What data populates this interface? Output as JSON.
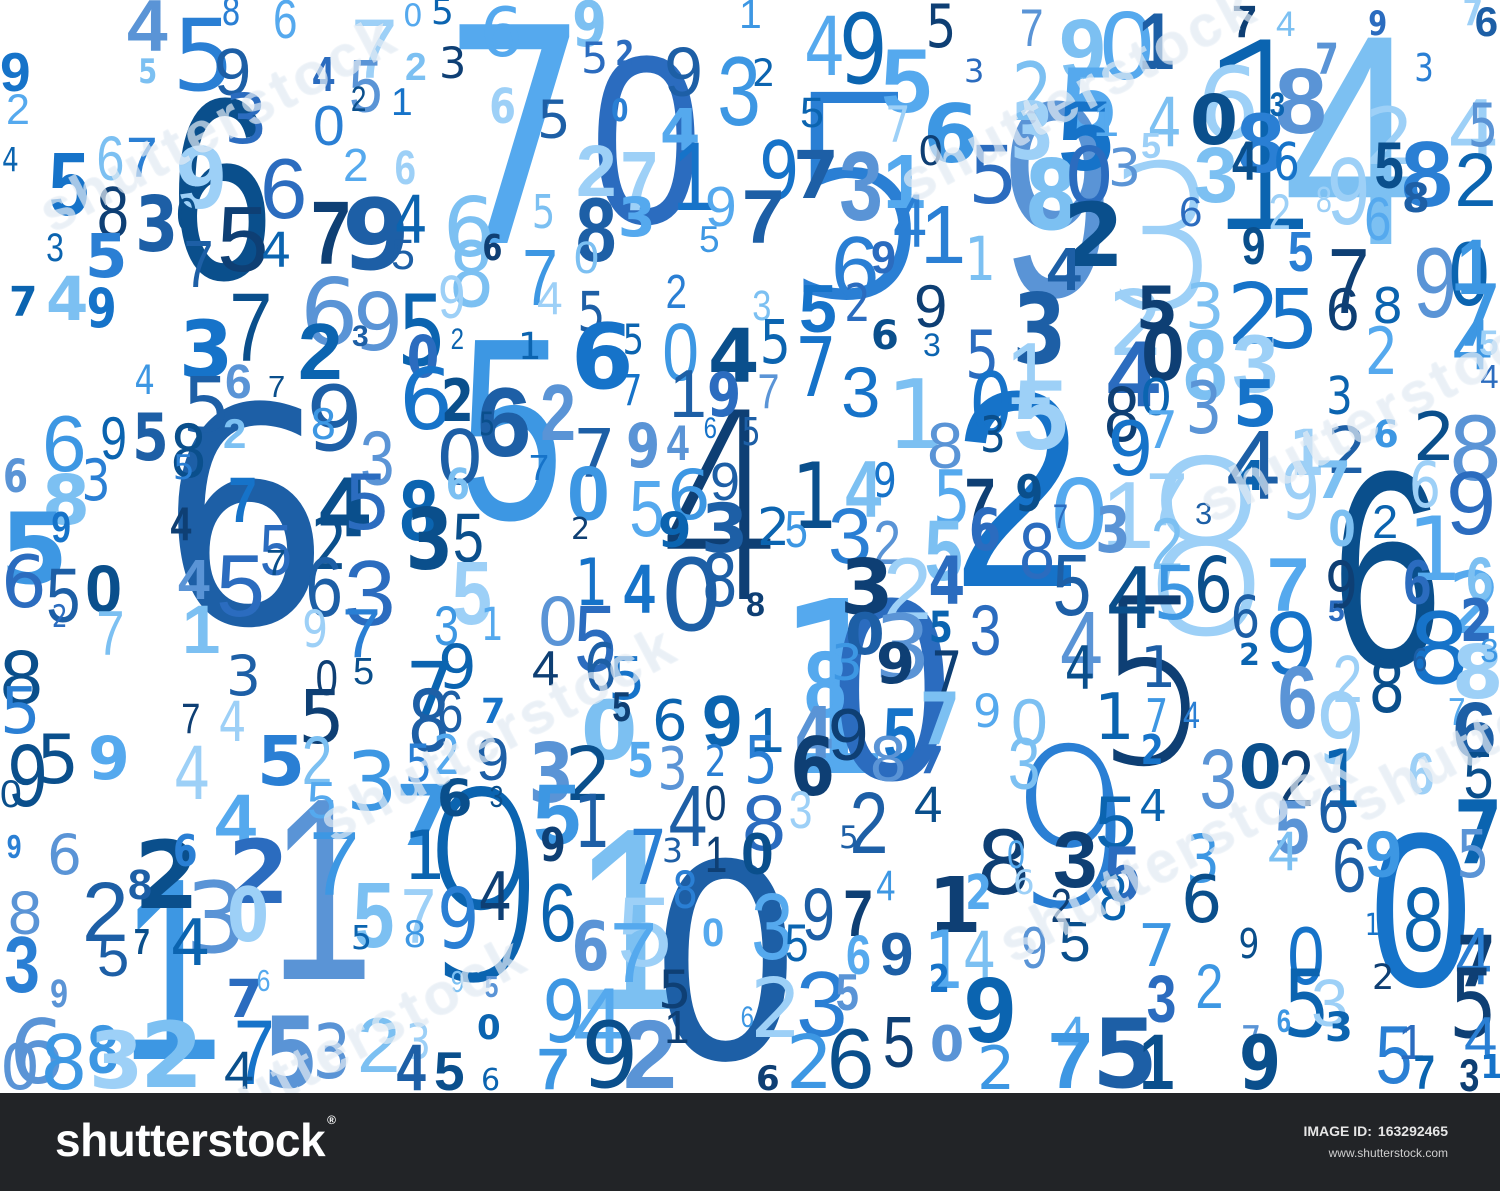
{
  "palette": [
    "#0a4f8c",
    "#0b64b0",
    "#1673c9",
    "#2a7fd4",
    "#3d97e3",
    "#55a9ee",
    "#7cc0f2",
    "#9dd0f7",
    "#5a94d6",
    "#0e3f74",
    "#2b6cbf",
    "#1d5fa6"
  ],
  "digits": "45867056914957901749769594523529325325687323021650457635140832454567962627197310580353469582830579465839741262868357",
  "footer": {
    "brand": "shutterstock",
    "trademark": "®",
    "image_id_label": "IMAGE ID:",
    "image_id": "163292465",
    "site": "www.shutterstock.com"
  },
  "watermark": "shutterstock"
}
